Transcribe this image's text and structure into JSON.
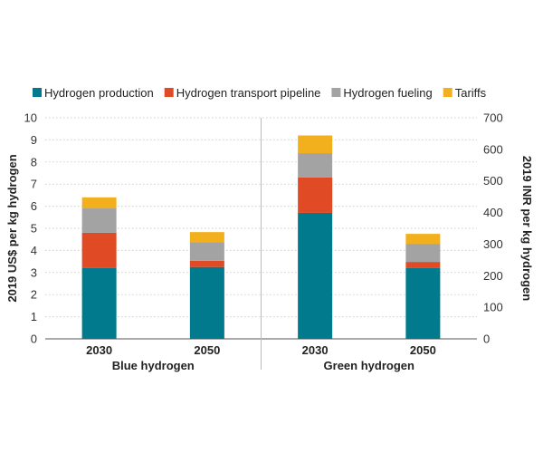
{
  "chart_data": {
    "type": "bar",
    "stacked": true,
    "categories": [
      "2030",
      "2050",
      "2030",
      "2050"
    ],
    "groups": [
      {
        "label": "Blue hydrogen",
        "categories": [
          0,
          1
        ]
      },
      {
        "label": "Green hydrogen",
        "categories": [
          2,
          3
        ]
      }
    ],
    "series": [
      {
        "name": "Hydrogen production",
        "color": "#007a8c",
        "values": [
          3.2,
          3.25,
          5.7,
          3.2
        ]
      },
      {
        "name": "Hydrogen transport pipeline",
        "color": "#e04a24",
        "values": [
          1.6,
          0.28,
          1.6,
          0.28
        ]
      },
      {
        "name": "Hydrogen fueling",
        "color": "#a3a3a3",
        "values": [
          1.1,
          0.85,
          1.1,
          0.82
        ]
      },
      {
        "name": "Tariffs",
        "color": "#f2b01e",
        "values": [
          0.5,
          0.45,
          0.8,
          0.45
        ]
      }
    ],
    "ylabel": "2019 US$ per kg hydrogen",
    "ylim": [
      0,
      10
    ],
    "yticks": [
      0,
      1,
      2,
      3,
      4,
      5,
      6,
      7,
      8,
      9,
      10
    ],
    "y2label": "2019 INR per kg hydrogen",
    "y2lim": [
      0,
      700
    ],
    "y2ticks": [
      0,
      100,
      200,
      300,
      400,
      500,
      600,
      700
    ],
    "grid": true,
    "legend_position": "top"
  }
}
